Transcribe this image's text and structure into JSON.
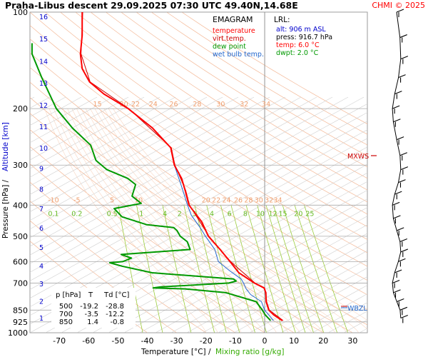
{
  "header": {
    "title": "Praha-Libus   descent   29.09.2025 07:30 UTC  49.40N,14.68E",
    "credit": "CHMI © 2025"
  },
  "legend": {
    "heading": "EMAGRAM",
    "items": [
      {
        "label": "temperature",
        "color": "#ff0000"
      },
      {
        "label": "virt.temp.",
        "color": "#cc0000"
      },
      {
        "label": "dew point",
        "color": "#009900"
      },
      {
        "label": "wet bulb temp.",
        "color": "#2266cc"
      }
    ]
  },
  "lrl": {
    "heading": "LRL:",
    "lines": [
      {
        "text": "alt: 906 m ASL",
        "color": "#0000cc"
      },
      {
        "text": "press: 916.7 hPa",
        "color": "#000000"
      },
      {
        "text": "temp: 6.0 °C",
        "color": "#ff0000"
      },
      {
        "text": "dwpt: 2.0 °C",
        "color": "#009900"
      }
    ]
  },
  "levels_table": {
    "header": [
      "p [hPa]",
      "T",
      "Td [°C]"
    ],
    "rows": [
      [
        "500",
        "-19.2",
        "-28.8"
      ],
      [
        "700",
        "-3.5",
        "-12.2"
      ],
      [
        "850",
        "1.4",
        "-0.8"
      ]
    ]
  },
  "markers": {
    "mxws": "MXWS",
    "wbzl": "WBZL"
  },
  "chart_data": {
    "type": "line",
    "title": "Praha-Libus   descent   29.09.2025 07:30 UTC  49.40N,14.68E",
    "xlabel": "Temperature [°C]  /",
    "xlabel2": "Mixing ratio [g/kg]",
    "ylabel": "Pressure [hPa]  /",
    "ylabel2": "Altitude [km]",
    "x_scale": "linear",
    "y_scale": "log",
    "xlim": [
      -80,
      35
    ],
    "ylim": [
      1000,
      100
    ],
    "x_ticks": [
      -70,
      -60,
      -50,
      -40,
      -30,
      -20,
      -10,
      0,
      10,
      20,
      30
    ],
    "y_ticks": [
      100,
      200,
      300,
      400,
      500,
      600,
      700,
      850,
      925,
      1000
    ],
    "altitude_km_labels": [
      "1",
      "2",
      "3",
      "4",
      "5",
      "6",
      "7",
      "8",
      "9",
      "10",
      "11",
      "12",
      "13",
      "14",
      "15",
      "16"
    ],
    "altitude_km_pressures": [
      898,
      795,
      702,
      617,
      540,
      471,
      410,
      356,
      307,
      265,
      227,
      195,
      166,
      142,
      121,
      103
    ],
    "mixing_ratio_labels": [
      "0.1",
      "0.2",
      "0.5",
      "1",
      "4",
      "2",
      "3",
      "4",
      "6",
      "8",
      "10",
      "12",
      "15",
      "20",
      "25"
    ],
    "mixing_ratio_label_x": [
      -72,
      -64,
      -52,
      -42,
      -34,
      -29,
      -24,
      -18,
      -12,
      -6.6,
      -1.5,
      2.8,
      6.2,
      11.5,
      15.4
    ],
    "dry_adiabat_labels_upper": [
      "15",
      "20",
      "22",
      "24",
      "26",
      "28",
      "30",
      "32",
      "34"
    ],
    "dry_adiabat_labels_upper_x": [
      -57,
      -48,
      -44,
      -38,
      -31,
      -23,
      -15,
      -7,
      0.5
    ],
    "dry_adiabat_labels_lower": [
      "-10",
      "-5",
      "5",
      "10",
      "20",
      "22",
      "24",
      "26",
      "28",
      "30",
      "32",
      "34"
    ],
    "dry_adiabat_labels_lower_x": [
      -72,
      -64,
      -52,
      -43,
      -20,
      -16.5,
      -13,
      -9,
      -5.5,
      -2,
      1.5,
      4.5
    ],
    "grid": true,
    "series": [
      {
        "name": "temperature",
        "color": "#ff0000",
        "points": [
          [
            100,
            -62.2
          ],
          [
            118,
            -62.2
          ],
          [
            135,
            -62.8
          ],
          [
            150,
            -62.2
          ],
          [
            165,
            -59.7
          ],
          [
            180,
            -54.8
          ],
          [
            200,
            -46.5
          ],
          [
            230,
            -38.2
          ],
          [
            265,
            -32.0
          ],
          [
            300,
            -30.8
          ],
          [
            330,
            -28.3
          ],
          [
            360,
            -27.1
          ],
          [
            400,
            -25.8
          ],
          [
            450,
            -21.5
          ],
          [
            500,
            -19.2
          ],
          [
            550,
            -15.2
          ],
          [
            600,
            -11.8
          ],
          [
            650,
            -8.8
          ],
          [
            700,
            -3.5
          ],
          [
            725,
            -0.2
          ],
          [
            750,
            0.4
          ],
          [
            800,
            0.5
          ],
          [
            850,
            1.4
          ],
          [
            880,
            3.1
          ],
          [
            916.7,
            6.0
          ]
        ]
      },
      {
        "name": "virt.temp.",
        "color": "#cc0000",
        "points": [
          [
            100,
            -62.0
          ],
          [
            135,
            -62.6
          ],
          [
            165,
            -59.5
          ],
          [
            200,
            -46.3
          ],
          [
            265,
            -31.8
          ],
          [
            300,
            -30.6
          ],
          [
            360,
            -26.9
          ],
          [
            400,
            -25.6
          ],
          [
            500,
            -19.0
          ],
          [
            600,
            -11.6
          ],
          [
            700,
            -3.3
          ],
          [
            725,
            0.0
          ],
          [
            800,
            0.7
          ],
          [
            850,
            1.6
          ],
          [
            916.7,
            6.3
          ]
        ]
      },
      {
        "name": "dew point",
        "color": "#009900",
        "points": [
          [
            125,
            -79.3
          ],
          [
            135,
            -79.3
          ],
          [
            160,
            -76.0
          ],
          [
            200,
            -71.0
          ],
          [
            230,
            -65.5
          ],
          [
            260,
            -59.3
          ],
          [
            290,
            -57.5
          ],
          [
            310,
            -53.8
          ],
          [
            330,
            -46.7
          ],
          [
            345,
            -44.0
          ],
          [
            375,
            -45.2
          ],
          [
            395,
            -42.1
          ],
          [
            410,
            -51.3
          ],
          [
            435,
            -48.6
          ],
          [
            460,
            -40.3
          ],
          [
            470,
            -31.0
          ],
          [
            480,
            -29.9
          ],
          [
            500,
            -28.8
          ],
          [
            520,
            -26.4
          ],
          [
            550,
            -25.4
          ],
          [
            570,
            -48.9
          ],
          [
            585,
            -45.4
          ],
          [
            600,
            -48.4
          ],
          [
            605,
            -52.8
          ],
          [
            620,
            -48.6
          ],
          [
            650,
            -38.4
          ],
          [
            680,
            -10.6
          ],
          [
            690,
            -9.7
          ],
          [
            700,
            -12.2
          ],
          [
            720,
            -35.6
          ],
          [
            725,
            -38.0
          ],
          [
            730,
            -27.1
          ],
          [
            750,
            -13.2
          ],
          [
            800,
            -2.9
          ],
          [
            850,
            -0.8
          ],
          [
            880,
            0.2
          ],
          [
            916.7,
            2.0
          ]
        ]
      },
      {
        "name": "wet bulb temp.",
        "color": "#2266cc",
        "points": [
          [
            300,
            -30.8
          ],
          [
            350,
            -28.3
          ],
          [
            400,
            -26.3
          ],
          [
            430,
            -25.0
          ],
          [
            470,
            -22.0
          ],
          [
            500,
            -20.2
          ],
          [
            550,
            -17.0
          ],
          [
            600,
            -15.8
          ],
          [
            640,
            -12.0
          ],
          [
            680,
            -8.0
          ],
          [
            700,
            -7.2
          ],
          [
            730,
            -6.3
          ],
          [
            760,
            -4.8
          ],
          [
            800,
            -1.1
          ],
          [
            850,
            0.0
          ],
          [
            880,
            1.4
          ],
          [
            916.7,
            3.0
          ]
        ]
      }
    ],
    "wind_barbs_pressures": [
      100,
      120,
      140,
      160,
      180,
      200,
      220,
      250,
      280,
      310,
      340,
      370,
      400,
      440,
      480,
      520,
      560,
      600,
      650,
      700,
      750,
      800,
      850,
      900
    ]
  }
}
